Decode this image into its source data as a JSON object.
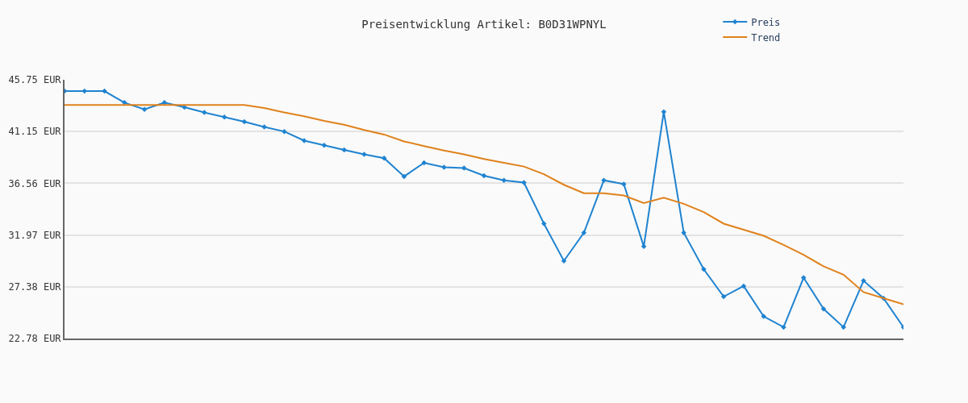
{
  "chart_data": {
    "type": "line",
    "title": "Preisentwicklung Artikel: B0D31WPNYL",
    "categories": [
      null,
      null,
      null,
      null,
      null,
      null,
      null,
      null,
      null,
      null,
      null,
      null,
      null,
      null,
      null,
      null,
      null,
      null,
      null,
      null,
      null,
      null,
      null,
      null,
      null,
      null,
      null,
      null,
      null,
      null,
      null,
      null,
      null,
      null,
      null,
      null,
      null,
      null,
      null,
      null,
      null,
      null,
      null
    ],
    "series": [
      {
        "name": "Preis",
        "color": "#1f83d0",
        "marker": "diamond",
        "values": [
          44.74,
          44.74,
          44.74,
          43.72,
          43.12,
          43.72,
          43.32,
          42.85,
          42.44,
          42.03,
          41.56,
          41.16,
          40.35,
          39.94,
          39.53,
          39.13,
          38.79,
          37.17,
          38.38,
          37.98,
          37.91,
          37.24,
          36.83,
          36.63,
          32.98,
          29.67,
          32.17,
          36.83,
          36.49,
          30.95,
          42.91,
          32.17,
          28.93,
          26.5,
          27.44,
          24.74,
          23.79,
          28.18,
          25.41,
          23.79,
          27.91,
          26.36,
          23.79
        ]
      },
      {
        "name": "Trend",
        "color": "#e0821c",
        "marker": "none",
        "values": [
          43.52,
          43.52,
          43.52,
          43.52,
          43.52,
          43.52,
          43.52,
          43.52,
          43.52,
          43.52,
          43.25,
          42.85,
          42.51,
          42.1,
          41.76,
          41.29,
          40.89,
          40.28,
          39.87,
          39.47,
          39.13,
          38.72,
          38.38,
          38.05,
          37.37,
          36.43,
          35.68,
          35.68,
          35.48,
          34.81,
          35.28,
          34.74,
          34.0,
          32.98,
          32.44,
          31.9,
          31.09,
          30.21,
          29.19,
          28.45,
          26.9,
          26.36,
          25.82
        ]
      }
    ],
    "ylim": [
      22.78,
      45.75
    ],
    "yticks": [
      {
        "value": 22.78,
        "label": "22.78 EUR"
      },
      {
        "value": 27.38,
        "label": "27.38 EUR"
      },
      {
        "value": 31.97,
        "label": "31.97 EUR"
      },
      {
        "value": 36.56,
        "label": "36.56 EUR"
      },
      {
        "value": 41.15,
        "label": "41.15 EUR"
      },
      {
        "value": 45.75,
        "label": "45.75 EUR"
      }
    ],
    "grid": "y",
    "legend": "top right",
    "tick_labels": "y"
  }
}
